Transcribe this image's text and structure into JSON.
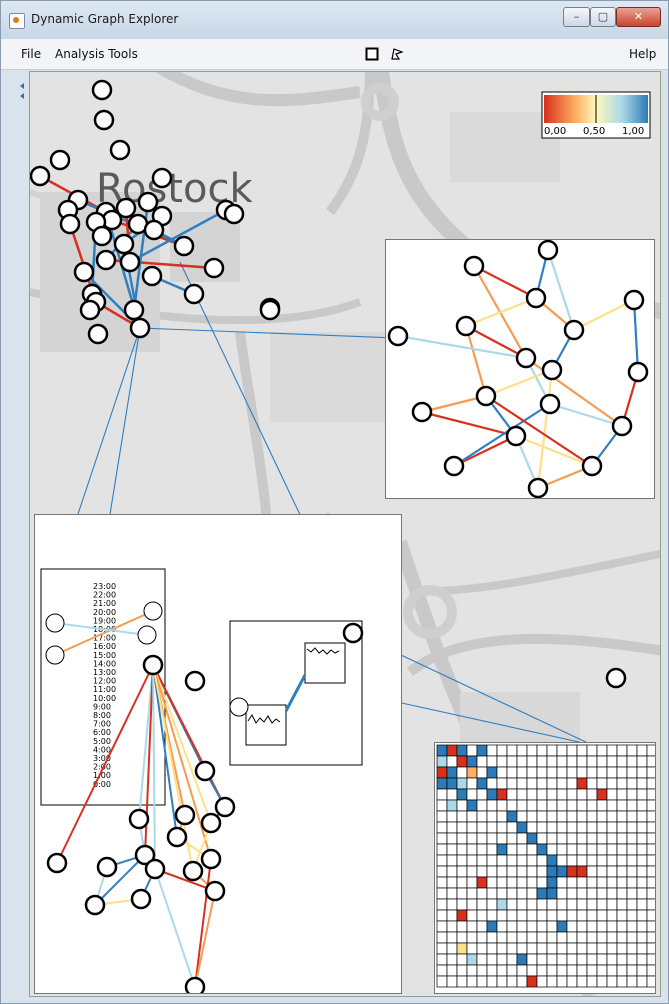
{
  "window": {
    "title": "Dynamic Graph Explorer"
  },
  "window_controls": {
    "minimize": "–",
    "maximize": "▢",
    "close": "✕"
  },
  "menu": {
    "file": "File",
    "analysis_tools": "Analysis Tools",
    "help": "Help"
  },
  "map": {
    "city_label": "Rostock"
  },
  "color_legend": {
    "min_label": "0,00",
    "mid_label": "0,50",
    "max_label": "1,00",
    "colors": [
      "#d7301f",
      "#fdae61",
      "#fff7bc",
      "#abd9e9",
      "#2c7bb6"
    ]
  },
  "time_scale": {
    "labels": [
      "23:00",
      "22:00",
      "21:00",
      "20:00",
      "19:00",
      "18:00",
      "17:00",
      "16:00",
      "15:00",
      "14:00",
      "13:00",
      "12:00",
      "11:00",
      "10:00",
      "9:00",
      "8:00",
      "7:00",
      "6:00",
      "5:00",
      "4:00",
      "3:00",
      "2:00",
      "1:00",
      "0:00"
    ]
  },
  "colors": {
    "node_fill": "#ffffff",
    "node_stroke": "#000000",
    "edge_blue": "#2f7fc1",
    "edge_red": "#d7301f",
    "edge_orange": "#f59b52"
  }
}
